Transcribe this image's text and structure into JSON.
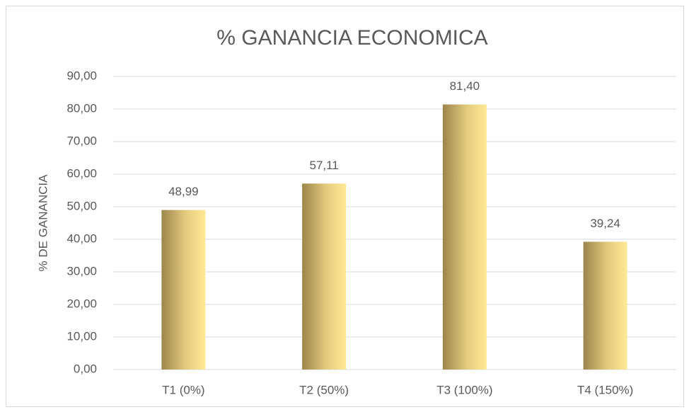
{
  "chart_data": {
    "type": "bar",
    "title": "% GANANCIA ECONOMICA",
    "y_label": "% DE GANANCIA",
    "categories": [
      "T1 (0%)",
      "T2 (50%)",
      "T3 (100%)",
      "T4 (150%)"
    ],
    "values": [
      48.99,
      57.11,
      81.4,
      39.24
    ],
    "value_labels": [
      "48,99",
      "57,11",
      "81,40",
      "39,24"
    ],
    "color": "#d9c27a",
    "ylim": [
      0,
      90
    ],
    "yticks": [
      {
        "value": 0,
        "label": "0,00"
      },
      {
        "value": 10,
        "label": "10,00"
      },
      {
        "value": 20,
        "label": "20,00"
      },
      {
        "value": 30,
        "label": "30,00"
      },
      {
        "value": 40,
        "label": "40,00"
      },
      {
        "value": 50,
        "label": "50,00"
      },
      {
        "value": 60,
        "label": "60,00"
      },
      {
        "value": 70,
        "label": "70,00"
      },
      {
        "value": 80,
        "label": "80,00"
      },
      {
        "value": 90,
        "label": "90,00"
      }
    ],
    "grid": true
  }
}
